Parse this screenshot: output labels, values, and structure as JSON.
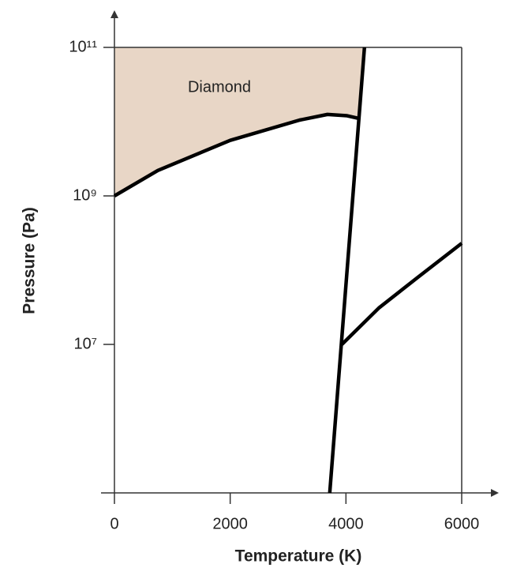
{
  "chart_data": {
    "type": "line",
    "xlabel": "Temperature (K)",
    "ylabel": "Pressure (Pa)",
    "annotations": [
      "Diamond"
    ],
    "xlim": [
      0,
      6000
    ],
    "ylim": [
      100000,
      100000000000
    ],
    "yscale": "log",
    "xticks": [
      0,
      2000,
      4000,
      6000
    ],
    "yticks": [
      {
        "value": 10000000,
        "label": "10⁷"
      },
      {
        "value": 1000000000,
        "label": "10⁹"
      },
      {
        "value": 100000000000,
        "label": "10¹¹"
      }
    ],
    "fill_color": "#e8d6c6",
    "series": [
      {
        "color": "#000000",
        "x": [
          0,
          750,
          2000,
          3200,
          3680,
          4020,
          4230
        ],
        "values": [
          1000000000,
          2200000000,
          5600000000,
          10500000000,
          12500000000,
          12000000000,
          11000000000
        ]
      },
      {
        "color": "#000000",
        "x": [
          3720,
          4320
        ],
        "values": [
          100000,
          100000000000
        ]
      },
      {
        "color": "#000000",
        "x": [
          3930,
          4570,
          5250,
          6000
        ],
        "values": [
          10000000,
          31000000,
          81000000,
          230000000
        ]
      }
    ]
  }
}
